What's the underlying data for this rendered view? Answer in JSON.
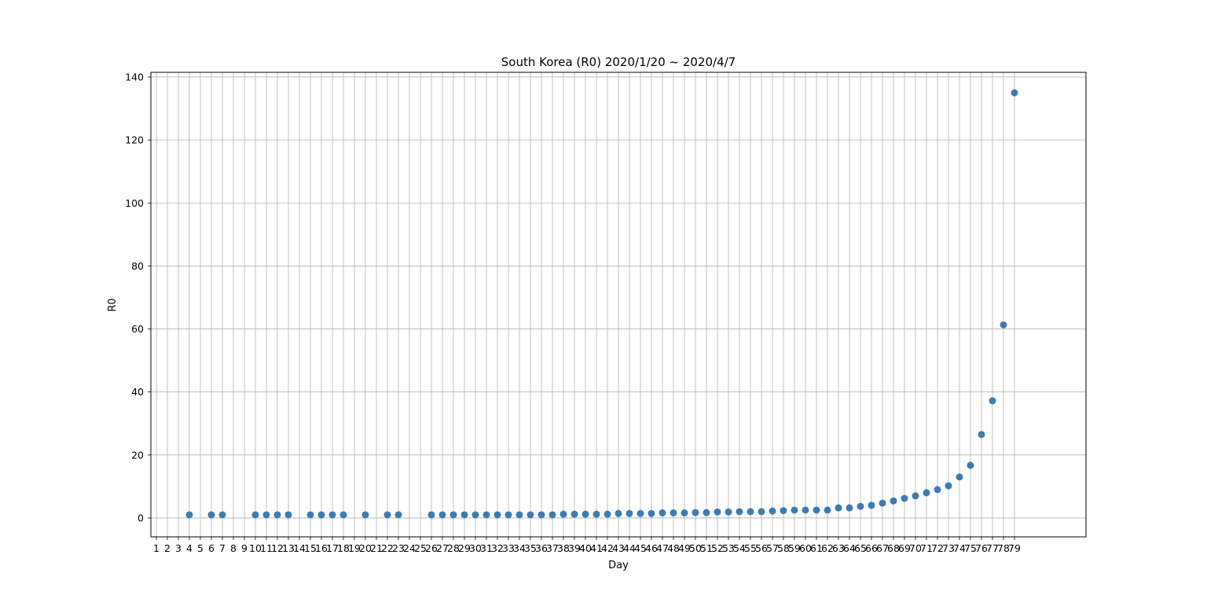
{
  "chart_data": {
    "type": "scatter",
    "title": "South Korea (R0) 2020/1/20 ~ 2020/4/7",
    "xlabel": "Day",
    "ylabel": "R0",
    "ylim": [
      -6,
      141.5
    ],
    "xlim": [
      0.5,
      85.5
    ],
    "yticks": [
      0,
      20,
      40,
      60,
      80,
      100,
      120,
      140
    ],
    "xticks": [
      1,
      2,
      3,
      4,
      5,
      6,
      7,
      8,
      9,
      10,
      11,
      12,
      13,
      14,
      15,
      16,
      17,
      18,
      19,
      20,
      21,
      22,
      23,
      24,
      25,
      26,
      27,
      28,
      29,
      30,
      31,
      32,
      33,
      34,
      35,
      36,
      37,
      38,
      39,
      40,
      41,
      42,
      43,
      44,
      45,
      46,
      47,
      48,
      49,
      50,
      51,
      52,
      53,
      54,
      55,
      56,
      57,
      58,
      59,
      60,
      61,
      62,
      63,
      64,
      65,
      66,
      67,
      68,
      69,
      70,
      71,
      72,
      73,
      74,
      75,
      76,
      77,
      78,
      79
    ],
    "grid": true,
    "marker_color": "#3e7bb1",
    "x": [
      4,
      6,
      7,
      10,
      11,
      12,
      13,
      15,
      16,
      17,
      18,
      20,
      22,
      23,
      26,
      27,
      28,
      29,
      30,
      31,
      32,
      33,
      34,
      35,
      36,
      37,
      38,
      39,
      40,
      41,
      42,
      43,
      44,
      45,
      46,
      47,
      48,
      49,
      50,
      51,
      52,
      53,
      54,
      55,
      56,
      57,
      58,
      59,
      60,
      61,
      62,
      63,
      64,
      65,
      66,
      67,
      68,
      69,
      70,
      71,
      72,
      73,
      74,
      75,
      76,
      77,
      78,
      79
    ],
    "y": [
      1,
      1,
      1,
      1,
      1,
      1,
      1,
      1,
      1,
      1,
      1,
      1,
      1,
      1,
      1,
      1,
      1,
      1,
      1,
      1,
      1,
      1,
      1,
      1,
      1,
      1,
      1.2,
      1.2,
      1.2,
      1.2,
      1.2,
      1.4,
      1.4,
      1.4,
      1.4,
      1.6,
      1.6,
      1.6,
      1.7,
      1.7,
      1.9,
      1.9,
      2,
      2,
      2,
      2.2,
      2.3,
      2.5,
      2.5,
      2.5,
      2.5,
      3.2,
      3.2,
      3.7,
      4,
      4.7,
      5.4,
      6.2,
      7,
      8,
      9,
      10.2,
      13,
      16.7,
      26.5,
      37.2,
      61.3,
      135
    ]
  }
}
